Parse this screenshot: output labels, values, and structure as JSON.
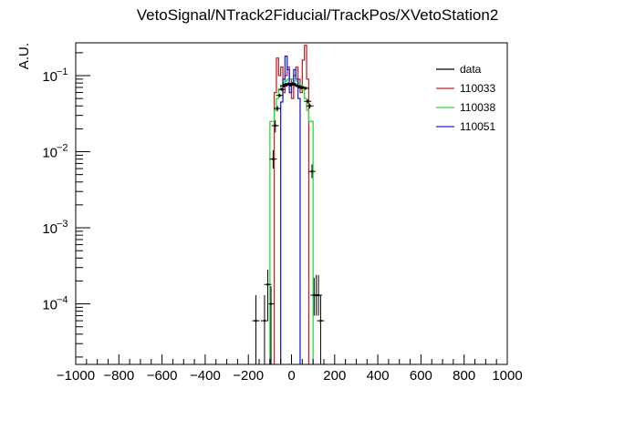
{
  "chart_data": {
    "type": "histogram",
    "title": "VetoSignal/NTrack2Fiducial/TrackPos/XVetoStation2",
    "ylabel": "A.U.",
    "xlabel": "",
    "xlim": [
      -1000,
      1000
    ],
    "ylim": [
      1.6e-05,
      0.27
    ],
    "yscale": "log",
    "grid": false,
    "legend_position": "top-right",
    "x_ticks": [
      -1000,
      -800,
      -600,
      -400,
      -200,
      0,
      200,
      400,
      600,
      800,
      1000
    ],
    "y_ticks": [
      {
        "label": "10",
        "exp": "−4",
        "value": 0.0001
      },
      {
        "label": "10",
        "exp": "−3",
        "value": 0.001
      },
      {
        "label": "10",
        "exp": "−2",
        "value": 0.01
      },
      {
        "label": "10",
        "exp": "−1",
        "value": 0.1
      }
    ],
    "bin_width": 10,
    "series": [
      {
        "name": "110033",
        "color": "#c0282d",
        "style": "step",
        "bins": [
          [
            -80,
            0.06
          ],
          [
            -70,
            0.17
          ],
          [
            -60,
            0.1
          ],
          [
            -50,
            0.13
          ],
          [
            -40,
            0.06
          ],
          [
            -30,
            0.1
          ],
          [
            -20,
            0.13
          ],
          [
            -10,
            0.09
          ],
          [
            0,
            0.05
          ],
          [
            10,
            0.1
          ],
          [
            20,
            0.13
          ],
          [
            30,
            0.09
          ],
          [
            40,
            0.06
          ],
          [
            50,
            0.16
          ],
          [
            60,
            0.25
          ],
          [
            70,
            0.09
          ]
        ]
      },
      {
        "name": "110038",
        "color": "#22dd33",
        "style": "step",
        "bins": [
          [
            -100,
            0.025
          ],
          [
            -90,
            0.025
          ],
          [
            -80,
            0.035
          ],
          [
            -70,
            0.05
          ],
          [
            -60,
            0.065
          ],
          [
            -50,
            0.075
          ],
          [
            -40,
            0.08
          ],
          [
            -30,
            0.085
          ],
          [
            -20,
            0.09
          ],
          [
            -10,
            0.09
          ],
          [
            0,
            0.09
          ],
          [
            10,
            0.085
          ],
          [
            20,
            0.085
          ],
          [
            30,
            0.08
          ],
          [
            40,
            0.075
          ],
          [
            50,
            0.065
          ],
          [
            60,
            0.05
          ],
          [
            70,
            0.035
          ],
          [
            80,
            0.025
          ],
          [
            90,
            0.025
          ]
        ]
      },
      {
        "name": "110051",
        "color": "#1e22cc",
        "style": "step",
        "bins": [
          [
            -50,
            0.045
          ],
          [
            -40,
            0.09
          ],
          [
            -30,
            0.18
          ],
          [
            -20,
            0.12
          ],
          [
            -10,
            0.06
          ],
          [
            0,
            0.08
          ],
          [
            10,
            0.12
          ],
          [
            20,
            0.09
          ],
          [
            30,
            0.05
          ]
        ]
      },
      {
        "name": "data",
        "color": "#000000",
        "style": "points",
        "points": [
          {
            "x": -165,
            "y": 6e-05,
            "lo": 1.6e-05,
            "hi": 0.00013
          },
          {
            "x": -125,
            "y": 6e-05,
            "lo": 1.6e-05,
            "hi": 0.00013
          },
          {
            "x": -110,
            "y": 0.00018,
            "lo": 6e-05,
            "hi": 0.00028
          },
          {
            "x": -95,
            "y": 0.0001,
            "lo": 1.6e-05,
            "hi": 0.00017
          },
          {
            "x": -85,
            "y": 0.008,
            "lo": 0.006,
            "hi": 0.0105
          },
          {
            "x": -75,
            "y": 0.022,
            "lo": 0.018,
            "hi": 0.026
          },
          {
            "x": -65,
            "y": 0.037,
            "lo": 0.034,
            "hi": 0.04
          },
          {
            "x": -55,
            "y": 0.055,
            "lo": 0.052,
            "hi": 0.058
          },
          {
            "x": -45,
            "y": 0.066,
            "lo": 0.063,
            "hi": 0.069
          },
          {
            "x": -35,
            "y": 0.073,
            "lo": 0.07,
            "hi": 0.076
          },
          {
            "x": -25,
            "y": 0.077,
            "lo": 0.074,
            "hi": 0.08
          },
          {
            "x": -15,
            "y": 0.078,
            "lo": 0.075,
            "hi": 0.081
          },
          {
            "x": -5,
            "y": 0.075,
            "lo": 0.072,
            "hi": 0.078
          },
          {
            "x": 5,
            "y": 0.079,
            "lo": 0.076,
            "hi": 0.082
          },
          {
            "x": 15,
            "y": 0.076,
            "lo": 0.073,
            "hi": 0.079
          },
          {
            "x": 25,
            "y": 0.074,
            "lo": 0.071,
            "hi": 0.077
          },
          {
            "x": 35,
            "y": 0.072,
            "lo": 0.069,
            "hi": 0.075
          },
          {
            "x": 45,
            "y": 0.069,
            "lo": 0.066,
            "hi": 0.072
          },
          {
            "x": 55,
            "y": 0.07,
            "lo": 0.067,
            "hi": 0.073
          },
          {
            "x": 65,
            "y": 0.068,
            "lo": 0.065,
            "hi": 0.071
          },
          {
            "x": 75,
            "y": 0.046,
            "lo": 0.043,
            "hi": 0.049
          },
          {
            "x": 85,
            "y": 0.04,
            "lo": 0.037,
            "hi": 0.043
          },
          {
            "x": 95,
            "y": 0.0055,
            "lo": 0.0045,
            "hi": 0.0068
          },
          {
            "x": 105,
            "y": 0.00013,
            "lo": 7e-05,
            "hi": 0.00022
          },
          {
            "x": 115,
            "y": 0.00013,
            "lo": 7e-05,
            "hi": 0.00024
          },
          {
            "x": 125,
            "y": 0.00013,
            "lo": 7e-05,
            "hi": 0.00024
          },
          {
            "x": 135,
            "y": 6e-05,
            "lo": 1.6e-05,
            "hi": 0.00013
          }
        ]
      }
    ],
    "legend": [
      {
        "label": "data",
        "color": "#000000"
      },
      {
        "label": "110033",
        "color": "#c0282d"
      },
      {
        "label": "110038",
        "color": "#22dd33"
      },
      {
        "label": "110051",
        "color": "#1e22cc"
      }
    ]
  }
}
